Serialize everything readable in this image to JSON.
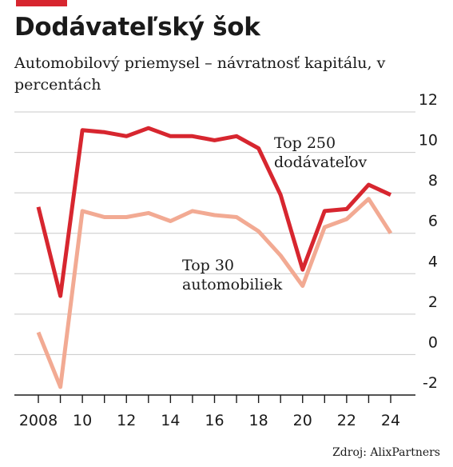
{
  "title": "Dodávateľský šok",
  "subtitle": "Automobilový priemysel – návratnosť kapitálu, v percentách",
  "source": "Zdroj: AlixPartners",
  "colors": {
    "accent": "#d7262f",
    "series_suppliers": "#d7262f",
    "series_carmakers": "#f2aa93",
    "grid": "#c8c8c8",
    "axis": "#1a1a1a"
  },
  "chart_data": {
    "type": "line",
    "x": [
      2008,
      2009,
      2010,
      2011,
      2012,
      2013,
      2014,
      2015,
      2016,
      2017,
      2018,
      2019,
      2020,
      2021,
      2022,
      2023,
      2024
    ],
    "x_tick_labels": [
      "2008",
      "10",
      "12",
      "14",
      "16",
      "18",
      "20",
      "22",
      "24"
    ],
    "y_tick_labels": [
      "12",
      "10",
      "8",
      "6",
      "4",
      "2",
      "0",
      "-2"
    ],
    "ylim": [
      -2,
      12
    ],
    "grid": "horizontal",
    "series": [
      {
        "name": "Top 250 dodávateľov",
        "values": [
          7.3,
          2.9,
          11.1,
          11.0,
          10.8,
          11.2,
          10.8,
          10.8,
          10.6,
          10.8,
          10.2,
          7.9,
          4.2,
          7.1,
          7.2,
          8.4,
          7.9
        ]
      },
      {
        "name": "Top 30 automobiliek",
        "values": [
          1.1,
          -1.6,
          7.1,
          6.8,
          6.8,
          7.0,
          6.6,
          7.1,
          6.9,
          6.8,
          6.1,
          4.9,
          3.4,
          6.3,
          6.7,
          7.7,
          6.0
        ]
      }
    ]
  }
}
